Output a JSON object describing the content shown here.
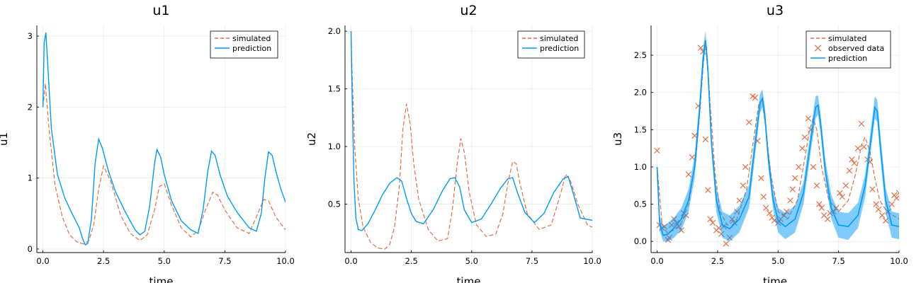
{
  "chart_data": [
    {
      "type": "line",
      "title": "u1",
      "xlabel": "time",
      "ylabel": "u1",
      "xlim": [
        -0.25,
        10.0
      ],
      "ylim": [
        -0.05,
        3.15
      ],
      "xticks": [
        0.0,
        2.5,
        5.0,
        7.5,
        10.0
      ],
      "xtick_labels": [
        "0.0",
        "2.5",
        "5.0",
        "7.5",
        "10.0"
      ],
      "yticks": [
        0,
        1,
        2,
        3
      ],
      "ytick_labels": [
        "0",
        "1",
        "2",
        "3"
      ],
      "grid": true,
      "legend_position": "top-right",
      "series": [
        {
          "name": "simulated",
          "style": "dashed",
          "color": "#e26f46",
          "x": [
            0.0,
            0.1,
            0.25,
            0.5,
            0.8,
            1.1,
            1.4,
            1.7,
            1.9,
            2.1,
            2.3,
            2.5,
            2.8,
            3.2,
            3.6,
            4.0,
            4.3,
            4.6,
            4.8,
            5.0,
            5.3,
            5.7,
            6.1,
            6.4,
            6.7,
            7.0,
            7.2,
            7.5,
            8.0,
            8.5,
            8.8,
            9.1,
            9.3,
            9.6,
            10.0
          ],
          "y": [
            2.0,
            2.33,
            1.7,
            0.9,
            0.45,
            0.2,
            0.1,
            0.07,
            0.12,
            0.35,
            0.85,
            1.17,
            0.95,
            0.48,
            0.22,
            0.12,
            0.2,
            0.55,
            0.88,
            0.92,
            0.62,
            0.3,
            0.17,
            0.26,
            0.55,
            0.8,
            0.76,
            0.55,
            0.3,
            0.22,
            0.45,
            0.7,
            0.68,
            0.45,
            0.27
          ]
        },
        {
          "name": "prediction",
          "style": "solid",
          "color": "#009af9",
          "x": [
            0.0,
            0.05,
            0.12,
            0.2,
            0.35,
            0.6,
            0.9,
            1.2,
            1.5,
            1.65,
            1.75,
            1.85,
            2.0,
            2.15,
            2.3,
            2.45,
            2.7,
            3.0,
            3.4,
            3.8,
            4.0,
            4.2,
            4.4,
            4.6,
            4.7,
            4.85,
            5.0,
            5.3,
            5.7,
            6.1,
            6.4,
            6.6,
            6.8,
            6.95,
            7.1,
            7.3,
            7.6,
            8.0,
            8.5,
            8.8,
            9.0,
            9.15,
            9.3,
            9.45,
            9.6,
            9.8,
            10.0
          ],
          "y": [
            2.0,
            2.9,
            3.05,
            2.6,
            1.7,
            1.05,
            0.72,
            0.5,
            0.3,
            0.13,
            0.06,
            0.08,
            0.42,
            1.2,
            1.55,
            1.42,
            1.1,
            0.8,
            0.52,
            0.27,
            0.2,
            0.25,
            0.6,
            1.2,
            1.4,
            1.3,
            1.05,
            0.68,
            0.4,
            0.27,
            0.22,
            0.55,
            1.1,
            1.38,
            1.32,
            1.05,
            0.75,
            0.52,
            0.3,
            0.25,
            0.5,
            1.0,
            1.37,
            1.32,
            1.1,
            0.85,
            0.66
          ]
        }
      ]
    },
    {
      "type": "line",
      "title": "u2",
      "xlabel": "time",
      "ylabel": "u2",
      "xlim": [
        -0.25,
        10.0
      ],
      "ylim": [
        0.08,
        2.05
      ],
      "xticks": [
        0.0,
        2.5,
        5.0,
        7.5,
        10.0
      ],
      "xtick_labels": [
        "0.0",
        "2.5",
        "5.0",
        "7.5",
        "10.0"
      ],
      "yticks": [
        0.5,
        1.0,
        1.5,
        2.0
      ],
      "ytick_labels": [
        "0.5",
        "1.0",
        "1.5",
        "2.0"
      ],
      "grid": true,
      "legend_position": "top-right",
      "series": [
        {
          "name": "simulated",
          "style": "dashed",
          "color": "#e26f46",
          "x": [
            0.0,
            0.05,
            0.15,
            0.3,
            0.5,
            0.8,
            1.1,
            1.4,
            1.6,
            1.8,
            2.0,
            2.15,
            2.3,
            2.45,
            2.6,
            2.8,
            3.2,
            3.6,
            4.0,
            4.2,
            4.4,
            4.55,
            4.7,
            4.9,
            5.2,
            5.6,
            6.0,
            6.3,
            6.5,
            6.7,
            6.85,
            7.0,
            7.3,
            7.8,
            8.3,
            8.7,
            8.9,
            9.1,
            9.4,
            9.8,
            10.0
          ],
          "y": [
            2.0,
            1.6,
            1.0,
            0.55,
            0.3,
            0.17,
            0.12,
            0.11,
            0.15,
            0.3,
            0.65,
            1.15,
            1.37,
            1.2,
            0.85,
            0.55,
            0.28,
            0.18,
            0.2,
            0.45,
            0.85,
            1.07,
            0.95,
            0.6,
            0.32,
            0.22,
            0.24,
            0.42,
            0.68,
            0.87,
            0.85,
            0.68,
            0.42,
            0.28,
            0.32,
            0.6,
            0.76,
            0.7,
            0.5,
            0.32,
            0.3
          ]
        },
        {
          "name": "prediction",
          "style": "solid",
          "color": "#009af9",
          "x": [
            0.0,
            0.05,
            0.12,
            0.2,
            0.3,
            0.45,
            0.7,
            1.0,
            1.3,
            1.6,
            1.9,
            2.1,
            2.3,
            2.5,
            2.7,
            3.0,
            3.4,
            3.8,
            4.1,
            4.3,
            4.5,
            4.7,
            5.0,
            5.4,
            5.8,
            6.2,
            6.5,
            6.7,
            6.9,
            7.2,
            7.6,
            8.0,
            8.4,
            8.8,
            9.0,
            9.2,
            9.5,
            10.0
          ],
          "y": [
            2.0,
            1.4,
            0.7,
            0.38,
            0.28,
            0.27,
            0.33,
            0.45,
            0.58,
            0.68,
            0.73,
            0.7,
            0.55,
            0.42,
            0.35,
            0.33,
            0.45,
            0.62,
            0.72,
            0.73,
            0.65,
            0.45,
            0.34,
            0.37,
            0.5,
            0.64,
            0.72,
            0.73,
            0.6,
            0.43,
            0.34,
            0.42,
            0.6,
            0.72,
            0.74,
            0.6,
            0.38,
            0.36
          ]
        }
      ]
    },
    {
      "type": "line",
      "title": "u3",
      "xlabel": "time",
      "ylabel": "u3",
      "xlim": [
        -0.25,
        10.0
      ],
      "ylim": [
        -0.15,
        2.9
      ],
      "xticks": [
        0.0,
        2.5,
        5.0,
        7.5,
        10.0
      ],
      "xtick_labels": [
        "0.0",
        "2.5",
        "5.0",
        "7.5",
        "10.0"
      ],
      "yticks": [
        0.0,
        0.5,
        1.0,
        1.5,
        2.0,
        2.5
      ],
      "ytick_labels": [
        "0.0",
        "0.5",
        "1.0",
        "1.5",
        "2.0",
        "2.5"
      ],
      "grid": true,
      "legend_position": "top-right",
      "series": [
        {
          "name": "simulated",
          "style": "dashed",
          "color": "#e26f46",
          "x": [
            0.0,
            0.2,
            0.4,
            0.7,
            1.0,
            1.3,
            1.6,
            1.8,
            1.95,
            2.05,
            2.2,
            2.4,
            2.6,
            2.9,
            3.3,
            3.7,
            4.0,
            4.2,
            4.35,
            4.5,
            4.7,
            5.0,
            5.4,
            5.8,
            6.1,
            6.3,
            6.45,
            6.6,
            6.8,
            7.1,
            7.5,
            7.9,
            8.2,
            8.45,
            8.6,
            8.8,
            9.0,
            9.2,
            9.5,
            10.0
          ],
          "y": [
            1.0,
            0.25,
            0.12,
            0.15,
            0.25,
            0.5,
            1.1,
            1.9,
            2.55,
            2.6,
            1.8,
            0.9,
            0.4,
            0.22,
            0.3,
            0.7,
            1.4,
            1.85,
            1.9,
            1.5,
            0.9,
            0.4,
            0.3,
            0.55,
            1.1,
            1.5,
            1.65,
            1.5,
            1.0,
            0.55,
            0.4,
            0.55,
            0.9,
            1.3,
            1.4,
            1.2,
            0.85,
            0.55,
            0.4,
            0.3
          ]
        },
        {
          "name": "observed data",
          "style": "markers",
          "color": "#e26f46",
          "x": [
            0.0,
            0.1,
            0.2,
            0.3,
            0.45,
            0.5,
            0.6,
            0.7,
            0.8,
            0.9,
            1.0,
            1.1,
            1.2,
            1.3,
            1.45,
            1.55,
            1.7,
            1.8,
            1.9,
            2.0,
            2.1,
            2.2,
            2.3,
            2.45,
            2.55,
            2.65,
            2.75,
            2.85,
            3.0,
            3.1,
            3.2,
            3.3,
            3.4,
            3.55,
            3.65,
            3.8,
            3.95,
            4.05,
            4.15,
            4.3,
            4.4,
            4.5,
            4.65,
            4.75,
            4.85,
            5.0,
            5.1,
            5.25,
            5.35,
            5.5,
            5.6,
            5.7,
            5.85,
            6.0,
            6.1,
            6.25,
            6.35,
            6.45,
            6.6,
            6.7,
            6.8,
            6.9,
            7.05,
            7.15,
            7.3,
            7.4,
            7.55,
            7.65,
            7.8,
            7.95,
            8.05,
            8.15,
            8.3,
            8.45,
            8.55,
            8.7,
            8.8,
            8.9,
            9.05,
            9.15,
            9.3,
            9.45,
            9.55,
            9.7,
            9.8,
            9.9,
            10.0
          ],
          "y": [
            1.22,
            0.22,
            0.18,
            0.2,
            0.02,
            0.05,
            0.22,
            0.3,
            0.25,
            0.2,
            0.15,
            0.38,
            0.35,
            0.9,
            1.13,
            1.42,
            1.82,
            2.6,
            2.55,
            1.37,
            0.69,
            0.3,
            0.25,
            0.15,
            0.18,
            0.1,
            0.2,
            -0.03,
            0.05,
            0.3,
            0.25,
            0.4,
            0.55,
            0.75,
            1.0,
            1.6,
            1.95,
            1.93,
            1.35,
            0.85,
            0.6,
            0.45,
            0.38,
            0.32,
            0.28,
            0.25,
            0.3,
            0.35,
            0.4,
            0.55,
            0.7,
            0.85,
            1.0,
            1.25,
            1.4,
            1.65,
            1.5,
            1.0,
            0.75,
            0.5,
            0.45,
            0.35,
            0.3,
            0.38,
            0.4,
            0.45,
            0.65,
            0.6,
            0.75,
            0.95,
            1.1,
            1.05,
            1.25,
            1.58,
            1.27,
            1.1,
            1.07,
            0.7,
            0.5,
            0.43,
            0.35,
            0.28,
            0.4,
            0.5,
            0.62,
            0.58,
            0.65
          ]
        },
        {
          "name": "prediction",
          "style": "solid-with-band",
          "color": "#009af9",
          "x": [
            0.0,
            0.1,
            0.25,
            0.45,
            0.7,
            1.0,
            1.3,
            1.55,
            1.75,
            1.9,
            2.0,
            2.1,
            2.25,
            2.45,
            2.7,
            3.0,
            3.4,
            3.8,
            4.05,
            4.25,
            4.35,
            4.45,
            4.6,
            4.8,
            5.0,
            5.3,
            5.7,
            6.05,
            6.35,
            6.55,
            6.65,
            6.75,
            6.95,
            7.2,
            7.5,
            7.9,
            8.3,
            8.6,
            8.85,
            9.0,
            9.1,
            9.25,
            9.45,
            9.7,
            10.0
          ],
          "y": [
            1.0,
            0.25,
            0.08,
            0.1,
            0.18,
            0.3,
            0.55,
            1.0,
            1.75,
            2.45,
            2.7,
            2.3,
            1.3,
            0.55,
            0.22,
            0.17,
            0.3,
            0.6,
            1.3,
            1.85,
            1.92,
            1.7,
            1.1,
            0.55,
            0.28,
            0.2,
            0.3,
            0.65,
            1.35,
            1.8,
            1.83,
            1.6,
            0.95,
            0.45,
            0.22,
            0.2,
            0.35,
            0.75,
            1.4,
            1.8,
            1.75,
            1.2,
            0.55,
            0.22,
            0.2
          ],
          "band_lower": [
            0.95,
            0.15,
            0.0,
            0.0,
            0.05,
            0.15,
            0.4,
            0.85,
            1.6,
            2.3,
            2.6,
            2.2,
            1.2,
            0.4,
            0.05,
            0.0,
            0.12,
            0.45,
            1.15,
            1.72,
            1.8,
            1.58,
            0.98,
            0.42,
            0.12,
            0.03,
            0.12,
            0.5,
            1.2,
            1.65,
            1.7,
            1.47,
            0.82,
            0.3,
            0.05,
            0.02,
            0.18,
            0.6,
            1.25,
            1.65,
            1.6,
            1.05,
            0.38,
            0.05,
            0.03
          ],
          "band_upper": [
            1.05,
            0.35,
            0.2,
            0.25,
            0.32,
            0.45,
            0.7,
            1.15,
            1.9,
            2.6,
            2.82,
            2.42,
            1.42,
            0.72,
            0.4,
            0.35,
            0.48,
            0.76,
            1.45,
            1.98,
            2.04,
            1.82,
            1.22,
            0.7,
            0.45,
            0.38,
            0.48,
            0.8,
            1.5,
            1.95,
            1.96,
            1.74,
            1.1,
            0.62,
            0.4,
            0.38,
            0.52,
            0.9,
            1.55,
            1.95,
            1.9,
            1.36,
            0.72,
            0.4,
            0.38
          ]
        }
      ]
    }
  ]
}
